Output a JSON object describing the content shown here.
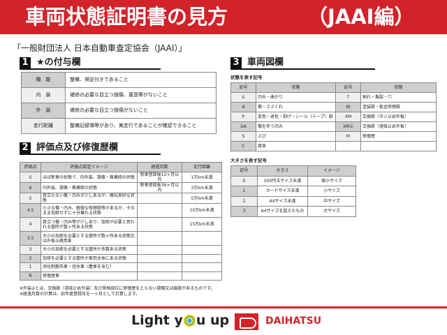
{
  "header": {
    "title": "車両状態証明書の見方",
    "subtitle": "（JAAI編）"
  },
  "org": "「一般財団法人 日本自動車査定協会（JAAI）」",
  "sec1": {
    "num": "1",
    "title": "★の付与欄",
    "rows": [
      {
        "k": "機　能",
        "v": "整備、保証付きであること"
      },
      {
        "k": "内　装",
        "v": "補修の必要な目立つ損傷、悪臭等がないこと"
      },
      {
        "k": "外　装",
        "v": "補修の必要な目立つ損傷がないこと"
      },
      {
        "k": "走行距離",
        "v": "整備記録簿等があり、実走行であることが確認できること"
      }
    ]
  },
  "sec2": {
    "num": "2",
    "title": "評価点及び修復歴欄",
    "headers": [
      "評価点",
      "評価点設定イメージ",
      "経過月数",
      "走行距離"
    ],
    "rows": [
      [
        "S",
        "ほぼ新車の状態で、内外装、損傷・無補修の状態",
        "新車登録後12ヶ月以内",
        "1万km未満"
      ],
      [
        "6",
        "内外装、損傷・無補修の状態",
        "新車登録後36ヶ月以内",
        "3万km未満"
      ],
      [
        "5",
        "目立たない傷・凹みが少しあるが、概ね良好な状態",
        "",
        "5万km未満"
      ],
      [
        "4.5",
        "小さな傷・凹み、軽微な修理跡等があるが、そのまま加修せずに十分乗れる状態",
        "",
        "10万km未満"
      ],
      [
        "4",
        "目立つ傷・凹み等が少しあり、加修が必要と思われる箇所が数ヶ所ある状態",
        "",
        "15万km未満"
      ],
      [
        "3.5",
        "大小の加修を必要とする箇所が数ヶ所ある状態又は外板②適用車",
        "",
        ""
      ],
      [
        "3",
        "大小の加修を必要とする箇所が多数ある状態",
        "",
        ""
      ],
      [
        "2",
        "加修を必要とする箇所が車両全体にある状態",
        "",
        ""
      ],
      [
        "1",
        "消化剤散布車・冠水車（塵車を含む）",
        "",
        ""
      ],
      [
        "R",
        "修復歴車",
        "",
        ""
      ]
    ]
  },
  "notes": [
    "※外装②とは、交換跡（溶接止め外装）及び骨格部位に修復歴をとらない損傷又は痕跡があるものです。",
    "※経過月数の計算は、初年度登録月を一ヶ月として計算します。"
  ],
  "sec3": {
    "num": "3",
    "title": "車両図欄",
    "state_title": "状態を表す記号",
    "state_headers": [
      "記号",
      "状態",
      "記号",
      "状態"
    ],
    "state_rows": [
      [
        "U",
        "凹み・曲がり",
        "T",
        "割れ・亀裂・穴"
      ],
      [
        "A",
        "傷・ささくれ",
        "W",
        "塗装跡・板金修理跡"
      ],
      [
        "P",
        "変色・退色・剥げ・シール（テープ）跡",
        "XM",
        "交換跡（ネジ止め外板）"
      ],
      [
        "UA",
        "傷を伴う凹み",
        "XM②",
        "交換跡（溶接止め外板）"
      ],
      [
        "S",
        "さび",
        "M",
        "修復歴"
      ],
      [
        "C",
        "腐食",
        "",
        ""
      ]
    ],
    "size_title": "大きさを表す記号",
    "size_headers": [
      "記号",
      "大きさ",
      "イメージ"
    ],
    "size_rows": [
      [
        "0",
        "500円玉サイズ未満",
        "微小サイズ"
      ],
      [
        "1",
        "カードサイズ未満",
        "小サイズ"
      ],
      [
        "2",
        "A4サイズ未満",
        "中サイズ"
      ],
      [
        "3",
        "A4サイズを超えたもの",
        "大サイズ"
      ]
    ]
  },
  "footer": {
    "slogan_pre": "Light y",
    "slogan_post": "u up",
    "brand": "DAIHATSU"
  },
  "colors": {
    "brand_red": "#d2232a"
  }
}
